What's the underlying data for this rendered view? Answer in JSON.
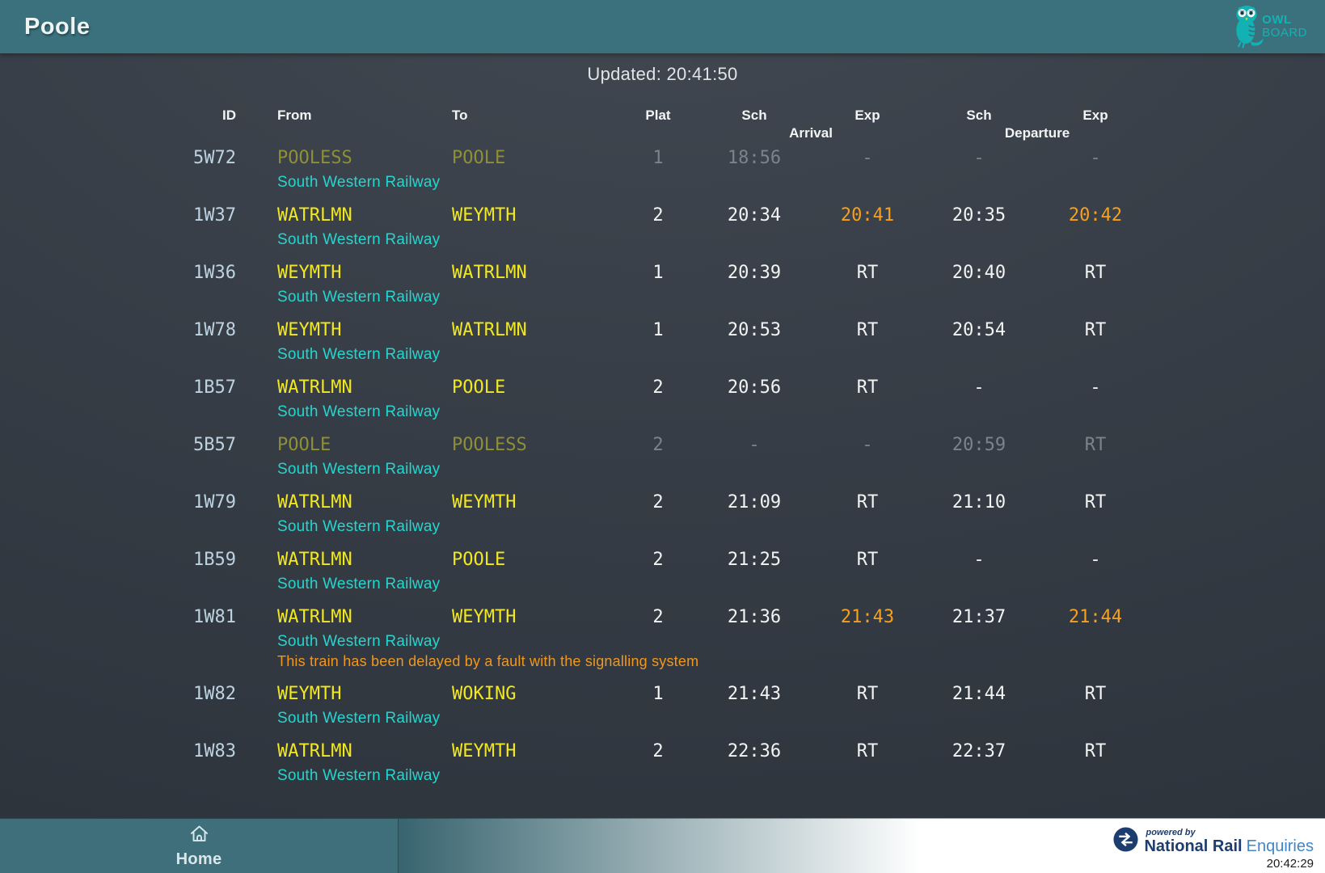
{
  "header": {
    "title": "Poole",
    "logo": {
      "line1": "OWL",
      "line2": "BOARD"
    }
  },
  "board": {
    "updated_label": "Updated: 20:41:50",
    "columns": [
      "ID",
      "From",
      "To",
      "Plat",
      "Sch",
      "Exp",
      "Sch",
      "Exp"
    ],
    "groups": {
      "arrival": "Arrival",
      "departure": "Departure"
    },
    "trains": [
      {
        "id": "5W72",
        "from": "POOLESS",
        "to": "POOLE",
        "plat": "1",
        "arr_sch": "18:56",
        "arr_exp": "-",
        "dep_sch": "-",
        "dep_exp": "-",
        "operator": "South Western Railway",
        "dimmed": true,
        "arr_exp_delayed": false,
        "dep_exp_delayed": false
      },
      {
        "id": "1W37",
        "from": "WATRLMN",
        "to": "WEYMTH",
        "plat": "2",
        "arr_sch": "20:34",
        "arr_exp": "20:41",
        "dep_sch": "20:35",
        "dep_exp": "20:42",
        "operator": "South Western Railway",
        "dimmed": false,
        "arr_exp_delayed": true,
        "dep_exp_delayed": true
      },
      {
        "id": "1W36",
        "from": "WEYMTH",
        "to": "WATRLMN",
        "plat": "1",
        "arr_sch": "20:39",
        "arr_exp": "RT",
        "dep_sch": "20:40",
        "dep_exp": "RT",
        "operator": "South Western Railway",
        "dimmed": false,
        "arr_exp_delayed": false,
        "dep_exp_delayed": false
      },
      {
        "id": "1W78",
        "from": "WEYMTH",
        "to": "WATRLMN",
        "plat": "1",
        "arr_sch": "20:53",
        "arr_exp": "RT",
        "dep_sch": "20:54",
        "dep_exp": "RT",
        "operator": "South Western Railway",
        "dimmed": false,
        "arr_exp_delayed": false,
        "dep_exp_delayed": false
      },
      {
        "id": "1B57",
        "from": "WATRLMN",
        "to": "POOLE",
        "plat": "2",
        "arr_sch": "20:56",
        "arr_exp": "RT",
        "dep_sch": "-",
        "dep_exp": "-",
        "operator": "South Western Railway",
        "dimmed": false,
        "arr_exp_delayed": false,
        "dep_exp_delayed": false
      },
      {
        "id": "5B57",
        "from": "POOLE",
        "to": "POOLESS",
        "plat": "2",
        "arr_sch": "-",
        "arr_exp": "-",
        "dep_sch": "20:59",
        "dep_exp": "RT",
        "operator": "South Western Railway",
        "dimmed": true,
        "arr_exp_delayed": false,
        "dep_exp_delayed": false
      },
      {
        "id": "1W79",
        "from": "WATRLMN",
        "to": "WEYMTH",
        "plat": "2",
        "arr_sch": "21:09",
        "arr_exp": "RT",
        "dep_sch": "21:10",
        "dep_exp": "RT",
        "operator": "South Western Railway",
        "dimmed": false,
        "arr_exp_delayed": false,
        "dep_exp_delayed": false
      },
      {
        "id": "1B59",
        "from": "WATRLMN",
        "to": "POOLE",
        "plat": "2",
        "arr_sch": "21:25",
        "arr_exp": "RT",
        "dep_sch": "-",
        "dep_exp": "-",
        "operator": "South Western Railway",
        "dimmed": false,
        "arr_exp_delayed": false,
        "dep_exp_delayed": false
      },
      {
        "id": "1W81",
        "from": "WATRLMN",
        "to": "WEYMTH",
        "plat": "2",
        "arr_sch": "21:36",
        "arr_exp": "21:43",
        "dep_sch": "21:37",
        "dep_exp": "21:44",
        "operator": "South Western Railway",
        "dimmed": false,
        "arr_exp_delayed": true,
        "dep_exp_delayed": true,
        "message": "This train has been delayed by a fault with the signalling system"
      },
      {
        "id": "1W82",
        "from": "WEYMTH",
        "to": "WOKING",
        "plat": "1",
        "arr_sch": "21:43",
        "arr_exp": "RT",
        "dep_sch": "21:44",
        "dep_exp": "RT",
        "operator": "South Western Railway",
        "dimmed": false,
        "arr_exp_delayed": false,
        "dep_exp_delayed": false
      },
      {
        "id": "1W83",
        "from": "WATRLMN",
        "to": "WEYMTH",
        "plat": "2",
        "arr_sch": "22:36",
        "arr_exp": "RT",
        "dep_sch": "22:37",
        "dep_exp": "RT",
        "operator": "South Western Railway",
        "dimmed": false,
        "arr_exp_delayed": false,
        "dep_exp_delayed": false
      }
    ]
  },
  "footer": {
    "home_label": "Home",
    "powered_by": "powered by",
    "brand_bold": "National Rail",
    "brand_light": "Enquiries",
    "clock": "20:42:29"
  },
  "colors": {
    "topbar_teal": "#3a717d",
    "background": "#383e47",
    "station_yellow": "#f2e820",
    "station_yellow_dim": "#8f8f36",
    "time_white": "#f2f4f4",
    "time_grey": "#7b838c",
    "delay_orange": "#f7a01d",
    "operator_cyan": "#25d6cf",
    "id_blue": "#bdd3e2",
    "logo_teal": "#12b2b4",
    "nr_navy": "#1d3d6e",
    "nr_blue": "#4286c8"
  }
}
